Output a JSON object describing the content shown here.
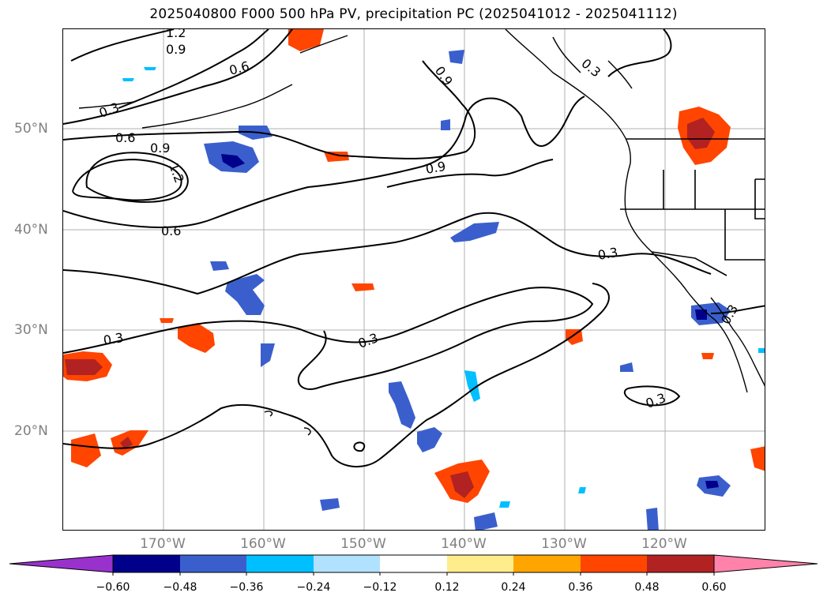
{
  "title": "2025040800 F000 500 hPa PV, precipitation PC (2025041012 - 2025041112)",
  "map": {
    "latitude_labels": [
      "50°N",
      "40°N",
      "30°N",
      "20°N"
    ],
    "longitude_labels": [
      "170°W",
      "160°W",
      "150°W",
      "140°W",
      "130°W",
      "120°W"
    ],
    "contour_labels": [
      "1.2",
      "0.9",
      "0.6",
      "0.3",
      "0.6",
      "0.9",
      "1.2",
      "0.9",
      "0.6",
      "0.3",
      "0.3",
      "0.3",
      "0.9",
      "0.3",
      "0.3",
      "0.3"
    ],
    "contour_line_color": "#000000",
    "coastline_color": "#000000",
    "gridline_color": "#b0b0b0"
  },
  "colorbar": {
    "ticks": [
      "−0.60",
      "−0.48",
      "−0.36",
      "−0.24",
      "−0.12",
      "0.12",
      "0.24",
      "0.36",
      "0.48",
      "0.60"
    ],
    "colors": [
      "#9932cc",
      "#00008b",
      "#3a5fcd",
      "#00bfff",
      "#b0e2ff",
      "#ffffff",
      "#ffec8b",
      "#ffa500",
      "#ff4500",
      "#b22222",
      "#ff82ab"
    ]
  }
}
